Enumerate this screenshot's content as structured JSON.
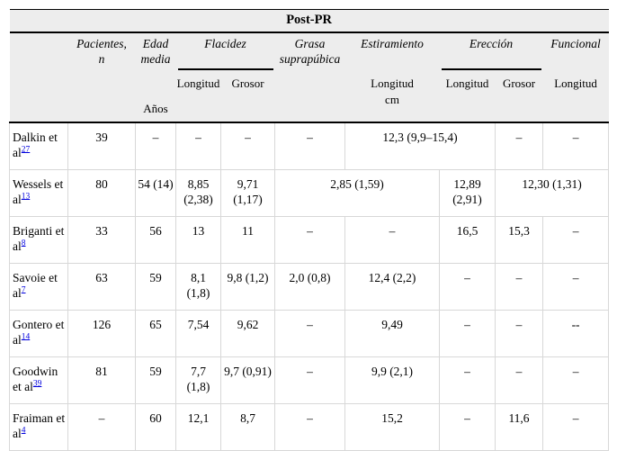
{
  "title": "Post-PR",
  "colors": {
    "header_bg": "#ededed",
    "body_border": "#d8d8d8",
    "rule_black": "#000000",
    "reference_link": "#0000dd"
  },
  "header": {
    "pacientes_l1": "Pacientes,",
    "pacientes_l2": "n",
    "edad_l1": "Edad",
    "edad_l2": "media",
    "edad_unit": "Años",
    "flacidez": "Flacidez",
    "fla_sub_longitud": "Longitud",
    "fla_sub_grosor": "Grosor",
    "grasa_l1": "Grasa",
    "grasa_l2": "suprapúbica",
    "estiramiento": "Estiramiento",
    "est_sub_l1": "Longitud",
    "est_sub_l2": "cm",
    "ereccion": "Erección",
    "ere_sub_longitud": "Longitud",
    "ere_sub_grosor": "Grosor",
    "funcional": "Funcional",
    "fun_sub": "Longitud"
  },
  "rows": [
    {
      "author": "Dalkin et al",
      "ref": "27",
      "cells": [
        {
          "v": "39"
        },
        {
          "v": "–"
        },
        {
          "v": "–"
        },
        {
          "v": "–"
        },
        {
          "v": "–"
        },
        {
          "v": "12,3 (9,9–15,4)",
          "span": 2
        },
        {
          "v": "–"
        },
        {
          "v": "–"
        }
      ]
    },
    {
      "author": "Wessels et al",
      "ref": "13",
      "cells": [
        {
          "v": "80"
        },
        {
          "v": "54 (14)"
        },
        {
          "v": "8,85 (2,38)"
        },
        {
          "v": "9,71 (1,17)"
        },
        {
          "v": "2,85 (1,59)",
          "span": 2
        },
        {
          "v": "12,89 (2,91)"
        },
        {
          "v": "12,30 (1,31)",
          "span": 2
        }
      ]
    },
    {
      "author": "Briganti et al",
      "ref": "8",
      "cells": [
        {
          "v": "33"
        },
        {
          "v": "56"
        },
        {
          "v": "13"
        },
        {
          "v": "11"
        },
        {
          "v": "–"
        },
        {
          "v": "–"
        },
        {
          "v": "16,5"
        },
        {
          "v": "15,3"
        },
        {
          "v": "–"
        }
      ]
    },
    {
      "author": "Savoie et al",
      "ref": "7",
      "cells": [
        {
          "v": "63"
        },
        {
          "v": "59"
        },
        {
          "v": "8,1 (1,8)"
        },
        {
          "v": "9,8 (1,2)"
        },
        {
          "v": "2,0 (0,8)"
        },
        {
          "v": "12,4 (2,2)"
        },
        {
          "v": "–"
        },
        {
          "v": "–"
        },
        {
          "v": "–"
        }
      ]
    },
    {
      "author": "Gontero et al",
      "ref": "14",
      "cells": [
        {
          "v": "126"
        },
        {
          "v": "65"
        },
        {
          "v": "7,54"
        },
        {
          "v": "9,62"
        },
        {
          "v": "–"
        },
        {
          "v": "9,49"
        },
        {
          "v": "–"
        },
        {
          "v": "–"
        },
        {
          "v": "--"
        }
      ]
    },
    {
      "author": "Goodwin et al",
      "ref": "39",
      "cells": [
        {
          "v": "81"
        },
        {
          "v": "59"
        },
        {
          "v": "7,7 (1,8)"
        },
        {
          "v": "9,7 (0,91)"
        },
        {
          "v": "–"
        },
        {
          "v": "9,9 (2,1)"
        },
        {
          "v": "–"
        },
        {
          "v": "–"
        },
        {
          "v": "–"
        }
      ]
    },
    {
      "author": "Fraiman et al",
      "ref": "4",
      "cells": [
        {
          "v": "–"
        },
        {
          "v": "60"
        },
        {
          "v": "12,1"
        },
        {
          "v": "8,7"
        },
        {
          "v": "–"
        },
        {
          "v": "15,2"
        },
        {
          "v": "–"
        },
        {
          "v": "11,6"
        },
        {
          "v": "–"
        }
      ]
    }
  ]
}
